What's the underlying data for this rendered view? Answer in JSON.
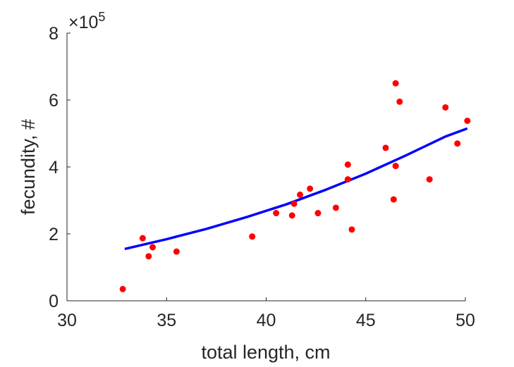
{
  "chart_data": {
    "type": "scatter",
    "xlabel": "total length, cm",
    "ylabel": "fecundity, #",
    "xlim": [
      30,
      50
    ],
    "ylim": [
      0,
      8
    ],
    "xticks": [
      "30",
      "35",
      "40",
      "45",
      "50"
    ],
    "yticks": [
      "0",
      "2",
      "4",
      "6",
      "8"
    ],
    "y_exponent": {
      "base": "×10",
      "power": "5"
    },
    "grid": false,
    "legend": "none",
    "series": [
      {
        "type": "scatter",
        "color": "#ff0000",
        "points": [
          {
            "x": 32.8,
            "y": 0.35
          },
          {
            "x": 33.8,
            "y": 1.87
          },
          {
            "x": 34.1,
            "y": 1.33
          },
          {
            "x": 34.3,
            "y": 1.6
          },
          {
            "x": 35.5,
            "y": 1.47
          },
          {
            "x": 39.3,
            "y": 1.92
          },
          {
            "x": 40.5,
            "y": 2.62
          },
          {
            "x": 41.3,
            "y": 2.55
          },
          {
            "x": 41.4,
            "y": 2.9
          },
          {
            "x": 41.7,
            "y": 3.17
          },
          {
            "x": 42.2,
            "y": 3.35
          },
          {
            "x": 42.6,
            "y": 2.62
          },
          {
            "x": 43.5,
            "y": 2.78
          },
          {
            "x": 44.1,
            "y": 4.07
          },
          {
            "x": 44.1,
            "y": 3.63
          },
          {
            "x": 44.3,
            "y": 2.13
          },
          {
            "x": 46.0,
            "y": 4.57
          },
          {
            "x": 46.4,
            "y": 3.03
          },
          {
            "x": 46.5,
            "y": 6.5
          },
          {
            "x": 46.5,
            "y": 4.03
          },
          {
            "x": 46.7,
            "y": 5.95
          },
          {
            "x": 48.2,
            "y": 3.63
          },
          {
            "x": 49.0,
            "y": 5.78
          },
          {
            "x": 49.6,
            "y": 4.7
          },
          {
            "x": 50.1,
            "y": 5.38
          }
        ]
      },
      {
        "type": "line",
        "color": "#0000ff",
        "x": [
          32.9,
          35,
          37,
          39,
          41,
          43,
          45,
          47,
          49,
          50.1
        ],
        "y": [
          1.55,
          1.84,
          2.15,
          2.5,
          2.88,
          3.32,
          3.8,
          4.34,
          4.91,
          5.15
        ]
      }
    ]
  }
}
